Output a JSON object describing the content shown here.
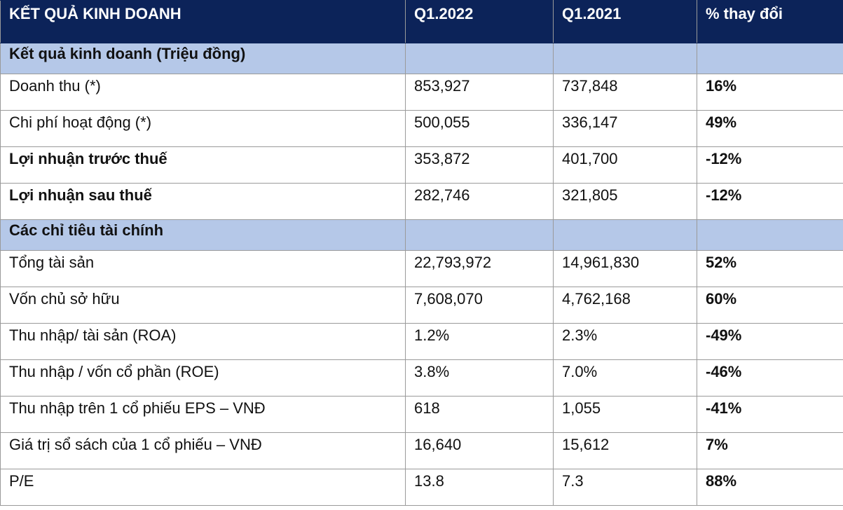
{
  "header": {
    "col1": "KẾT QUẢ KINH DOANH",
    "col2": "Q1.2022",
    "col3": "Q1.2021",
    "col4": "% thay đổi"
  },
  "section1": {
    "title": "Kết quả kinh doanh (Triệu đồng)",
    "rows": [
      {
        "label": "Doanh thu (*)",
        "q2022": "853,927",
        "q2021": "737,848",
        "change": "16%"
      },
      {
        "label": "Chi phí hoạt động (*)",
        "q2022": "500,055",
        "q2021": "336,147",
        "change": "49%"
      },
      {
        "label": "Lợi nhuận trước thuế",
        "q2022": "353,872",
        "q2021": "401,700",
        "change": "-12%"
      },
      {
        "label": "Lợi nhuận sau thuế",
        "q2022": "282,746",
        "q2021": "321,805",
        "change": "-12%"
      }
    ]
  },
  "section2": {
    "title": "Các chỉ tiêu tài chính",
    "rows": [
      {
        "label": "Tổng tài sản",
        "q2022": "22,793,972",
        "q2021": "14,961,830",
        "change": "52%"
      },
      {
        "label": "Vốn chủ sở hữu",
        "q2022": "7,608,070",
        "q2021": "4,762,168",
        "change": "60%"
      },
      {
        "label": "Thu nhập/ tài sản (ROA)",
        "q2022": "1.2%",
        "q2021": "2.3%",
        "change": "-49%"
      },
      {
        "label": "Thu nhập / vốn cổ phần (ROE)",
        "q2022": "3.8%",
        "q2021": "7.0%",
        "change": "-46%"
      },
      {
        "label": "Thu nhập trên 1 cổ phiếu EPS – VNĐ",
        "q2022": "618",
        "q2021": "1,055",
        "change": "-41%"
      },
      {
        "label": "Giá trị sổ sách của 1 cổ phiếu – VNĐ",
        "q2022": "16,640",
        "q2021": "15,612",
        "change": "7%"
      },
      {
        "label": "P/E",
        "q2022": "13.8",
        "q2021": "7.3",
        "change": "88%"
      }
    ]
  }
}
